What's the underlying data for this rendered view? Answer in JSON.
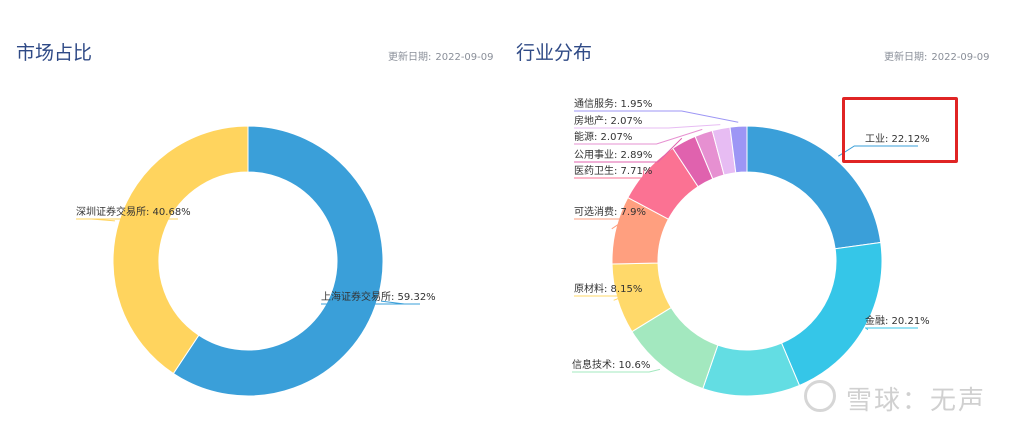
{
  "left_panel": {
    "title": "市场占比",
    "date_label": "更新日期:",
    "date_value": "2022-09-09"
  },
  "right_panel": {
    "title": "行业分布",
    "date_label": "更新日期:",
    "date_value": "2022-09-09"
  },
  "watermark": {
    "text": "雪球：无声"
  },
  "chart_data": [
    {
      "type": "pie",
      "title": "市场占比",
      "slices": [
        {
          "name": "上海证券交易所",
          "value": 59.32,
          "label": "上海证券交易所: 59.32%",
          "color": "#3a9fd9"
        },
        {
          "name": "深圳证券交易所",
          "value": 40.68,
          "label": "深圳证券交易所: 40.68%",
          "color": "#ffd45e"
        }
      ]
    },
    {
      "type": "pie",
      "title": "行业分布",
      "slices": [
        {
          "name": "工业",
          "value": 22.12,
          "label": "工业: 22.12%",
          "color": "#3a9fd9"
        },
        {
          "name": "金融",
          "value": 20.21,
          "label": "金融: 20.21%",
          "color": "#35c6e8"
        },
        {
          "name": "",
          "value": 11.3,
          "label": "",
          "color": "#63dde3"
        },
        {
          "name": "信息技术",
          "value": 10.6,
          "label": "信息技术: 10.6%",
          "color": "#a3e8bf"
        },
        {
          "name": "原材料",
          "value": 8.15,
          "label": "原材料: 8.15%",
          "color": "#ffd96a"
        },
        {
          "name": "可选消费",
          "value": 7.9,
          "label": "可选消费: 7.9%",
          "color": "#ff9f7f"
        },
        {
          "name": "医药卫生",
          "value": 7.71,
          "label": "医药卫生: 7.71%",
          "color": "#fb7293"
        },
        {
          "name": "公用事业",
          "value": 2.89,
          "label": "公用事业: 2.89%",
          "color": "#e062ae"
        },
        {
          "name": "能源",
          "value": 2.07,
          "label": "能源: 2.07%",
          "color": "#e690d1"
        },
        {
          "name": "房地产",
          "value": 2.07,
          "label": "房地产: 2.07%",
          "color": "#e7bcf3"
        },
        {
          "name": "通信服务",
          "value": 1.95,
          "label": "通信服务: 1.95%",
          "color": "#9d96f5"
        }
      ]
    }
  ]
}
